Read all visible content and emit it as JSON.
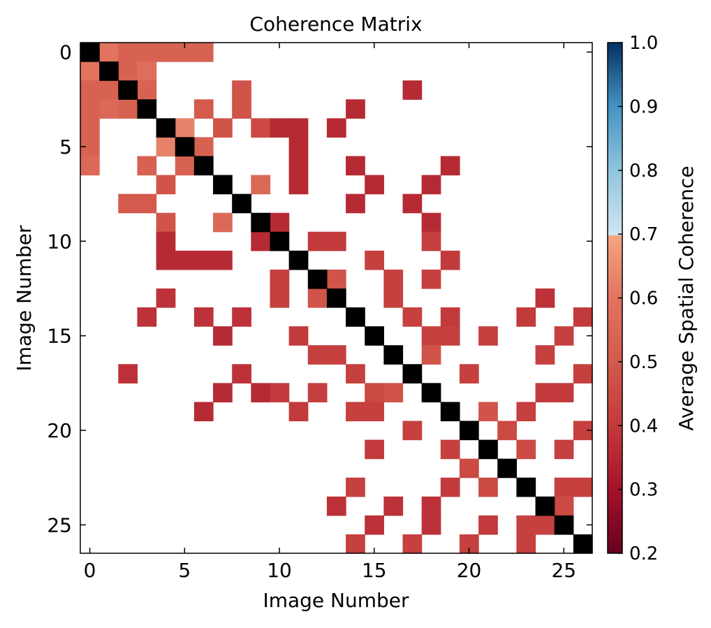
{
  "chart_data": {
    "type": "heatmap",
    "title": "Coherence Matrix",
    "xlabel": "Image Number",
    "ylabel": "Image Number",
    "n": 27,
    "xticks": [
      0,
      5,
      10,
      15,
      20,
      25
    ],
    "yticks": [
      0,
      5,
      10,
      15,
      20,
      25
    ],
    "colorbar": {
      "label": "Average Spatial Coherence",
      "range": [
        0.2,
        1.0
      ],
      "ticks": [
        "0.2",
        "0.3",
        "0.4",
        "0.5",
        "0.6",
        "0.7",
        "0.8",
        "0.9",
        "1.0"
      ],
      "colormap": "RdBu",
      "threshold": 0.7
    },
    "diagonal_color": "#000000",
    "cells": [
      [
        0,
        1,
        0.6
      ],
      [
        0,
        2,
        0.53
      ],
      [
        0,
        3,
        0.53
      ],
      [
        0,
        4,
        0.53
      ],
      [
        0,
        5,
        0.53
      ],
      [
        0,
        6,
        0.53
      ],
      [
        1,
        0,
        0.6
      ],
      [
        1,
        2,
        0.53
      ],
      [
        1,
        3,
        0.58
      ],
      [
        2,
        0,
        0.53
      ],
      [
        2,
        1,
        0.53
      ],
      [
        2,
        3,
        0.53
      ],
      [
        2,
        8,
        0.48
      ],
      [
        2,
        17,
        0.36
      ],
      [
        3,
        0,
        0.53
      ],
      [
        3,
        1,
        0.56
      ],
      [
        3,
        2,
        0.53
      ],
      [
        3,
        6,
        0.5
      ],
      [
        3,
        8,
        0.48
      ],
      [
        3,
        14,
        0.36
      ],
      [
        4,
        0,
        0.53
      ],
      [
        4,
        5,
        0.63
      ],
      [
        4,
        7,
        0.48
      ],
      [
        4,
        9,
        0.45
      ],
      [
        4,
        10,
        0.36
      ],
      [
        4,
        11,
        0.36
      ],
      [
        4,
        13,
        0.36
      ],
      [
        5,
        0,
        0.53
      ],
      [
        5,
        4,
        0.63
      ],
      [
        5,
        6,
        0.53
      ],
      [
        5,
        11,
        0.36
      ],
      [
        6,
        0,
        0.56
      ],
      [
        6,
        3,
        0.53
      ],
      [
        6,
        5,
        0.53
      ],
      [
        6,
        11,
        0.36
      ],
      [
        6,
        14,
        0.36
      ],
      [
        6,
        19,
        0.36
      ],
      [
        7,
        4,
        0.48
      ],
      [
        7,
        9,
        0.56
      ],
      [
        7,
        11,
        0.36
      ],
      [
        7,
        15,
        0.36
      ],
      [
        7,
        18,
        0.36
      ],
      [
        8,
        2,
        0.5
      ],
      [
        8,
        3,
        0.5
      ],
      [
        8,
        14,
        0.36
      ],
      [
        8,
        17,
        0.36
      ],
      [
        9,
        4,
        0.48
      ],
      [
        9,
        7,
        0.56
      ],
      [
        9,
        10,
        0.36
      ],
      [
        9,
        18,
        0.36
      ],
      [
        10,
        4,
        0.36
      ],
      [
        10,
        9,
        0.36
      ],
      [
        10,
        12,
        0.4
      ],
      [
        10,
        13,
        0.4
      ],
      [
        10,
        18,
        0.42
      ],
      [
        11,
        4,
        0.36
      ],
      [
        11,
        5,
        0.36
      ],
      [
        11,
        6,
        0.36
      ],
      [
        11,
        7,
        0.36
      ],
      [
        11,
        15,
        0.42
      ],
      [
        11,
        19,
        0.4
      ],
      [
        12,
        10,
        0.42
      ],
      [
        12,
        13,
        0.48
      ],
      [
        12,
        16,
        0.42
      ],
      [
        12,
        18,
        0.42
      ],
      [
        13,
        4,
        0.38
      ],
      [
        13,
        10,
        0.42
      ],
      [
        13,
        12,
        0.48
      ],
      [
        13,
        16,
        0.42
      ],
      [
        13,
        24,
        0.38
      ],
      [
        14,
        3,
        0.38
      ],
      [
        14,
        6,
        0.38
      ],
      [
        14,
        8,
        0.38
      ],
      [
        14,
        17,
        0.42
      ],
      [
        14,
        19,
        0.4
      ],
      [
        14,
        23,
        0.4
      ],
      [
        14,
        26,
        0.4
      ],
      [
        15,
        7,
        0.36
      ],
      [
        15,
        11,
        0.4
      ],
      [
        15,
        18,
        0.42
      ],
      [
        15,
        19,
        0.42
      ],
      [
        15,
        21,
        0.42
      ],
      [
        15,
        25,
        0.42
      ],
      [
        16,
        12,
        0.42
      ],
      [
        16,
        13,
        0.42
      ],
      [
        16,
        18,
        0.48
      ],
      [
        16,
        24,
        0.42
      ],
      [
        17,
        2,
        0.38
      ],
      [
        17,
        8,
        0.38
      ],
      [
        17,
        14,
        0.42
      ],
      [
        17,
        20,
        0.42
      ],
      [
        17,
        26,
        0.42
      ],
      [
        18,
        7,
        0.36
      ],
      [
        18,
        9,
        0.36
      ],
      [
        18,
        10,
        0.4
      ],
      [
        18,
        12,
        0.42
      ],
      [
        18,
        15,
        0.45
      ],
      [
        18,
        16,
        0.48
      ],
      [
        18,
        24,
        0.4
      ],
      [
        18,
        25,
        0.4
      ],
      [
        19,
        6,
        0.36
      ],
      [
        19,
        11,
        0.4
      ],
      [
        19,
        14,
        0.42
      ],
      [
        19,
        15,
        0.42
      ],
      [
        19,
        21,
        0.48
      ],
      [
        19,
        23,
        0.42
      ],
      [
        20,
        17,
        0.42
      ],
      [
        20,
        22,
        0.45
      ],
      [
        20,
        26,
        0.42
      ],
      [
        21,
        15,
        0.4
      ],
      [
        21,
        19,
        0.42
      ],
      [
        21,
        23,
        0.45
      ],
      [
        21,
        25,
        0.42
      ],
      [
        22,
        20,
        0.45
      ],
      [
        23,
        14,
        0.42
      ],
      [
        23,
        19,
        0.4
      ],
      [
        23,
        21,
        0.45
      ],
      [
        23,
        25,
        0.42
      ],
      [
        23,
        26,
        0.42
      ],
      [
        24,
        13,
        0.38
      ],
      [
        24,
        16,
        0.38
      ],
      [
        24,
        18,
        0.38
      ],
      [
        24,
        25,
        0.45
      ],
      [
        25,
        15,
        0.38
      ],
      [
        25,
        18,
        0.38
      ],
      [
        25,
        21,
        0.4
      ],
      [
        25,
        23,
        0.42
      ],
      [
        25,
        24,
        0.42
      ],
      [
        26,
        14,
        0.42
      ],
      [
        26,
        17,
        0.42
      ],
      [
        26,
        20,
        0.42
      ],
      [
        26,
        23,
        0.42
      ]
    ]
  }
}
